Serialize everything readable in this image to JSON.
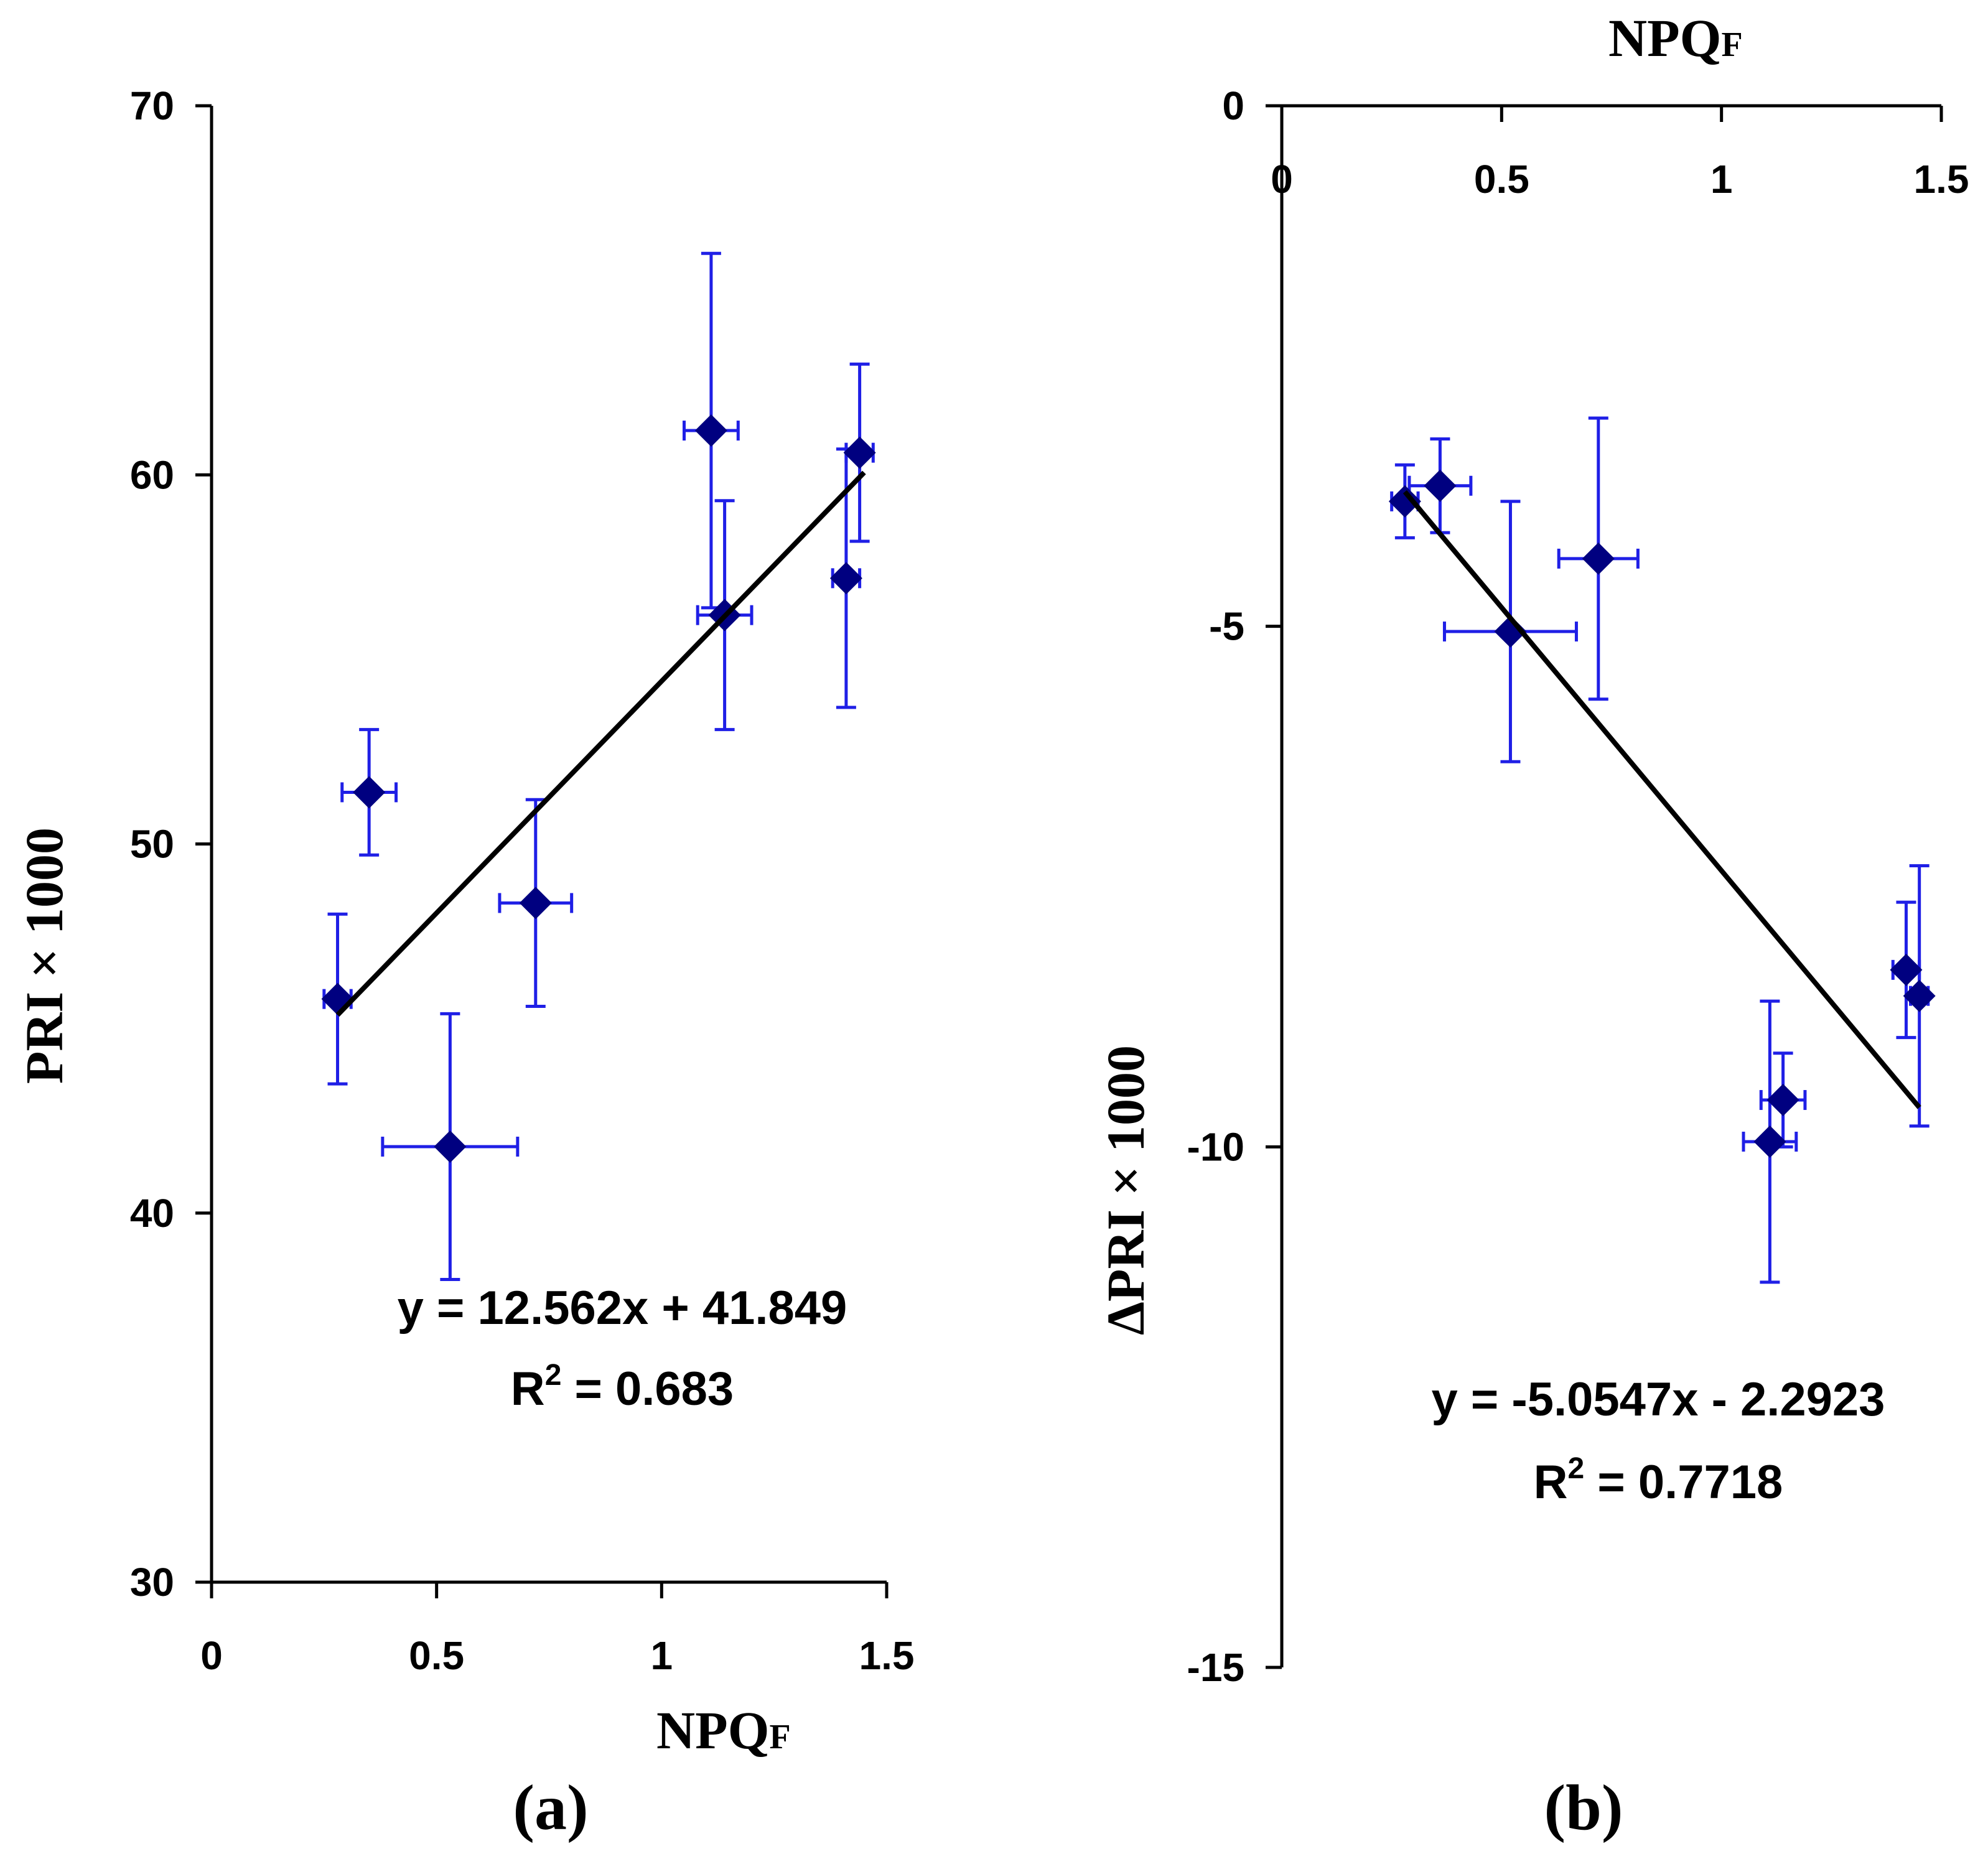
{
  "colors": {
    "marker": "#000080",
    "error_bars": "#1f1fe6",
    "trendline": "#000000",
    "axes": "#000000"
  },
  "chart_data": [
    {
      "id": "a",
      "type": "scatter",
      "panel_label": "(a)",
      "xlabel": "NPQ",
      "xlabel_sub": "F",
      "ylabel": "PRI × 1000",
      "xlim": [
        0,
        1.5
      ],
      "ylim": [
        30,
        70
      ],
      "xticks": [
        0,
        0.5,
        1,
        1.5
      ],
      "xtick_labels": [
        "0",
        "0.5",
        "1",
        "1.5"
      ],
      "yticks": [
        30,
        40,
        50,
        60,
        70
      ],
      "ytick_labels": [
        "30",
        "40",
        "50",
        "60",
        "70"
      ],
      "x_axis_position": "bottom",
      "points": [
        {
          "x": 0.28,
          "y": 45.8,
          "xerr": 0.03,
          "yerr": 2.3
        },
        {
          "x": 0.35,
          "y": 51.4,
          "xerr": 0.06,
          "yerr": 1.7
        },
        {
          "x": 0.53,
          "y": 41.8,
          "xerr": 0.15,
          "yerr": 3.6
        },
        {
          "x": 0.72,
          "y": 48.4,
          "xerr": 0.08,
          "yerr": 2.8
        },
        {
          "x": 1.11,
          "y": 61.2,
          "xerr": 0.06,
          "yerr": 4.8
        },
        {
          "x": 1.14,
          "y": 56.2,
          "xerr": 0.06,
          "yerr": 3.1
        },
        {
          "x": 1.41,
          "y": 57.2,
          "xerr": 0.03,
          "yerr": 3.5
        },
        {
          "x": 1.44,
          "y": 60.6,
          "xerr": 0.03,
          "yerr": 2.4
        }
      ],
      "trendline": {
        "slope": 12.562,
        "intercept": 41.849,
        "x_range": [
          0.28,
          1.45
        ]
      },
      "equation": "y = 12.562x + 41.849",
      "r2_prefix": "R",
      "r2_sup": "2",
      "r2_value": " = 0.683"
    },
    {
      "id": "b",
      "type": "scatter",
      "panel_label": "(b)",
      "xlabel": "NPQ",
      "xlabel_sub": "F",
      "ylabel": "ΔPRI × 1000",
      "xlim": [
        0,
        1.5
      ],
      "ylim": [
        -15,
        0
      ],
      "xticks": [
        0,
        0.5,
        1,
        1.5
      ],
      "xtick_labels": [
        "0",
        "0.5",
        "1",
        "1.5"
      ],
      "yticks": [
        -15,
        -10,
        -5,
        0
      ],
      "ytick_labels": [
        "-15",
        "-10",
        "-5",
        "0"
      ],
      "x_axis_position": "top",
      "points": [
        {
          "x": 0.28,
          "y": -3.8,
          "xerr": 0.03,
          "yerr": 0.35
        },
        {
          "x": 0.36,
          "y": -3.65,
          "xerr": 0.07,
          "yerr": 0.45
        },
        {
          "x": 0.52,
          "y": -5.05,
          "xerr": 0.15,
          "yerr": 1.25
        },
        {
          "x": 0.72,
          "y": -4.35,
          "xerr": 0.09,
          "yerr": 1.35
        },
        {
          "x": 1.11,
          "y": -9.95,
          "xerr": 0.06,
          "yerr": 1.35
        },
        {
          "x": 1.14,
          "y": -9.55,
          "xerr": 0.05,
          "yerr": 0.45
        },
        {
          "x": 1.42,
          "y": -8.3,
          "xerr": 0.03,
          "yerr": 0.65
        },
        {
          "x": 1.45,
          "y": -8.55,
          "xerr": 0.02,
          "yerr": 1.25
        }
      ],
      "trendline": {
        "slope": -5.0547,
        "intercept": -2.2923,
        "x_range": [
          0.28,
          1.45
        ]
      },
      "equation": "y = -5.0547x - 2.2923",
      "r2_prefix": "R",
      "r2_sup": "2",
      "r2_value": " = 0.7718"
    }
  ]
}
